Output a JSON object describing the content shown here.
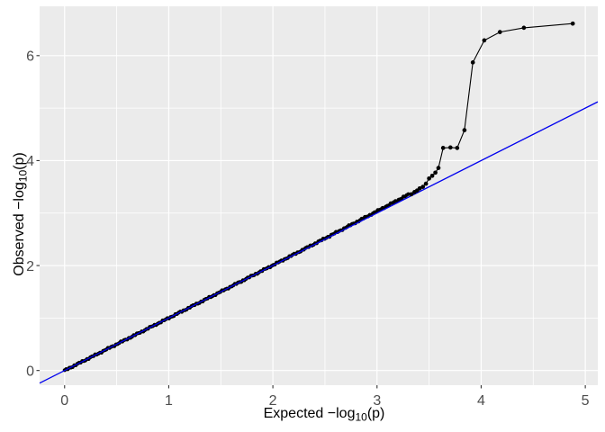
{
  "page": {
    "background_color": "#FFFFFF",
    "description": "QQ plot of GWAS p-values, ggplot2-style gray panel"
  },
  "chart_data": {
    "type": "scatter",
    "title": "",
    "xlabel": {
      "prefix": "Expected  −log",
      "sub": "10",
      "suffix": "(p)"
    },
    "ylabel": {
      "prefix": "Observed  −log",
      "sub": "10",
      "suffix": "(p)"
    },
    "x_tick_labels": [
      "0",
      "1",
      "2",
      "3",
      "4",
      "5"
    ],
    "y_tick_labels": [
      "0",
      "2",
      "4",
      "6"
    ],
    "x_major_ticks": [
      0,
      1,
      2,
      3,
      4,
      5
    ],
    "y_major_ticks": [
      0,
      2,
      4,
      6
    ],
    "x_minor_ticks": [
      0.5,
      1.5,
      2.5,
      3.5,
      4.5
    ],
    "y_minor_ticks": [
      1,
      3,
      5
    ],
    "xlim": [
      -0.24,
      5.12
    ],
    "ylim": [
      -0.28,
      6.94
    ],
    "grid": "on",
    "legend": "none",
    "reference_line": {
      "slope": 1,
      "intercept": 0,
      "name": "identity-line"
    },
    "series": [
      {
        "name": "qq-dense-diagonal",
        "style": "dense_run",
        "x_from": 0,
        "y_from": 0,
        "x_to": 3.3,
        "y_to": 3.33,
        "n_points": 215,
        "upward_bias_max": 0.052,
        "jitter": 0.01,
        "note": "thousands of overlapping points hugging y = x from (0,0) to (3.3,3.35)"
      },
      {
        "name": "qq-tail",
        "style": "connected_points",
        "points": [
          [
            3.33,
            3.36
          ],
          [
            3.36,
            3.4
          ],
          [
            3.385,
            3.43
          ],
          [
            3.41,
            3.47
          ],
          [
            3.44,
            3.5
          ],
          [
            3.47,
            3.56
          ],
          [
            3.5,
            3.66
          ],
          [
            3.53,
            3.71
          ],
          [
            3.56,
            3.77
          ],
          [
            3.59,
            3.86
          ],
          [
            3.635,
            4.24
          ],
          [
            3.705,
            4.25
          ],
          [
            3.77,
            4.24
          ],
          [
            3.84,
            4.58
          ],
          [
            3.92,
            5.87
          ],
          [
            4.03,
            6.29
          ],
          [
            4.18,
            6.45
          ],
          [
            4.41,
            6.53
          ],
          [
            4.88,
            6.61
          ]
        ]
      }
    ],
    "colors": {
      "panel_background": "#EBEBEB",
      "grid_major": "#FFFFFF",
      "grid_minor": "#FFFFFF",
      "points": "#000000",
      "point_connector": "#000000",
      "reference_line": "#0000EE",
      "tick_mark": "#333333",
      "tick_text": "#4D4D4D",
      "axis_title": "#000000",
      "outer_background": "#FFFFFF"
    }
  }
}
